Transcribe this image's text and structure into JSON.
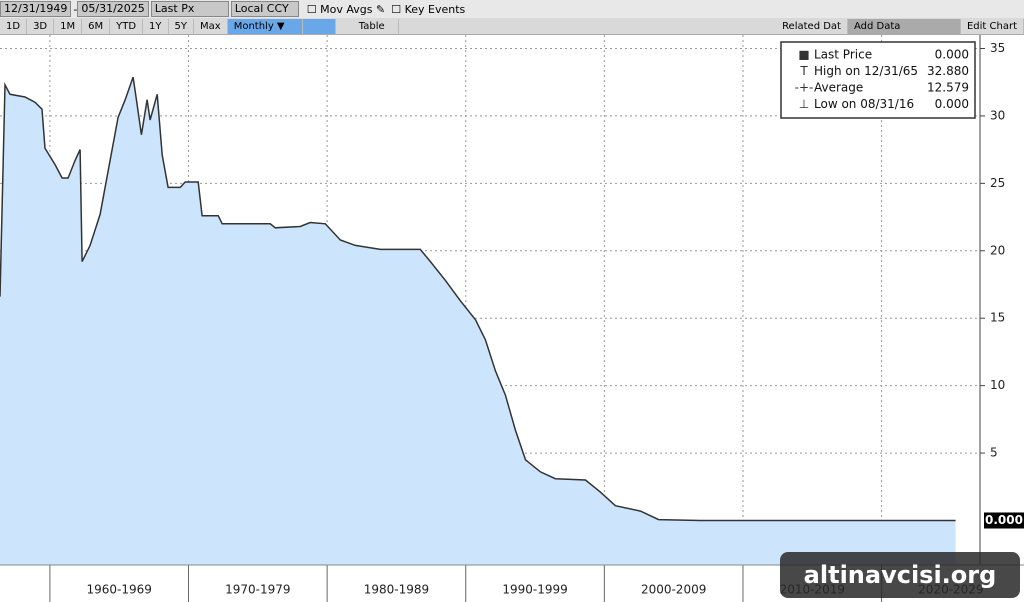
{
  "toolbar": {
    "start_date": "12/31/1949",
    "date_separator": "-",
    "end_date": "05/31/2025",
    "field": "Last Px",
    "currency": "Local CCY",
    "mov_avgs": "Mov Avgs",
    "key_events": "Key Events",
    "periods": [
      "1D",
      "3D",
      "1M",
      "6M",
      "YTD",
      "1Y",
      "5Y",
      "Max"
    ],
    "frequency": "Monthly ▼",
    "table": "Table",
    "related_data": "Related Dat",
    "add_data": "Add Data",
    "edit_chart": "Edit Chart"
  },
  "watermark": "altinavcisi.org",
  "chart_data": {
    "type": "area",
    "x": [
      1956.4,
      1956.76,
      1957.12,
      1958.2,
      1958.93,
      1959.43,
      1959.65,
      1960.37,
      1960.88,
      1961.31,
      1961.82,
      1962.18,
      1962.32,
      1962.9,
      1963.62,
      1964.34,
      1964.92,
      1965.43,
      1966.0,
      1966.3,
      1966.6,
      1967.01,
      1967.23,
      1967.74,
      1968.1,
      1968.53,
      1969.4,
      1969.76,
      1970.7,
      1970.98,
      1972.14,
      1972.43,
      1975.89,
      1976.26,
      1978.06,
      1978.78,
      1979.87,
      1980.95,
      1982.03,
      1983.84,
      1986.72,
      1987.45,
      1988.53,
      1989.61,
      1990.7,
      1991.42,
      1992.14,
      1992.86,
      1993.58,
      1994.31,
      1995.39,
      1996.47,
      1998.64,
      1999.72,
      2000.8,
      2002.61,
      2003.91,
      2006.93,
      2016.67,
      2025.34
    ],
    "series": [
      {
        "name": "Last Price",
        "color": "#333333",
        "fill": "#cce5fc",
        "values": [
          16.6,
          32.3,
          31.6,
          31.4,
          31.0,
          30.5,
          27.6,
          26.4,
          25.4,
          25.4,
          26.7,
          27.5,
          19.2,
          20.4,
          22.7,
          26.7,
          29.9,
          31.2,
          32.88,
          30.8,
          28.6,
          31.2,
          29.7,
          31.6,
          27.1,
          24.7,
          24.7,
          25.1,
          25.1,
          22.6,
          22.6,
          22.0,
          22.0,
          21.7,
          21.8,
          22.1,
          22.0,
          20.8,
          20.4,
          20.1,
          20.1,
          19.2,
          17.8,
          16.3,
          14.9,
          13.4,
          11.1,
          9.3,
          6.7,
          4.5,
          3.6,
          3.1,
          3.0,
          2.1,
          1.1,
          0.7,
          0.07,
          0,
          0,
          0
        ]
      }
    ],
    "xlim": [
      1956.4,
      2027.1
    ],
    "ylim": [
      -3.3,
      36
    ],
    "xticks": [
      {
        "value": 1960,
        "label": "1960-1969"
      },
      {
        "value": 1970,
        "label": "1970-1979"
      },
      {
        "value": 1980,
        "label": "1980-1989"
      },
      {
        "value": 1990,
        "label": "1990-1999"
      },
      {
        "value": 2000,
        "label": "2000-2009"
      },
      {
        "value": 2010,
        "label": "2010-2019"
      },
      {
        "value": 2020,
        "label": "2020-2029"
      }
    ],
    "yticks": [
      5,
      10,
      15,
      20,
      25,
      30,
      35
    ],
    "grid": true,
    "stats": [
      {
        "name": "Last Price",
        "value": 0,
        "value_label": "0.000"
      },
      {
        "name": "High on 12/31/65",
        "value": 32.88,
        "value_label": "32.880"
      },
      {
        "name": "Average",
        "value": 12.579,
        "value_label": "12.579"
      },
      {
        "name": "Low on 08/31/16",
        "value": 0,
        "value_label": "0.000"
      }
    ]
  }
}
